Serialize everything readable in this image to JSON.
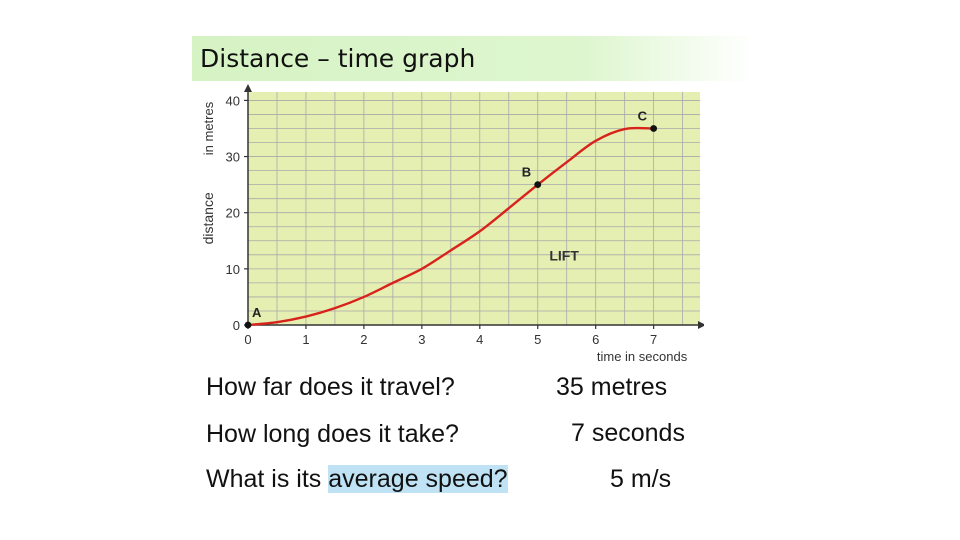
{
  "slide": {
    "title": "Distance – time  graph"
  },
  "chart_data": {
    "type": "line",
    "y_axis_label": "distance",
    "y_axis_unit_label": "in metres",
    "x_axis_label": "time in seconds",
    "x_ticks": [
      "0",
      "1",
      "2",
      "3",
      "4",
      "5",
      "6",
      "7"
    ],
    "y_ticks": [
      "0",
      "10",
      "20",
      "30",
      "40"
    ],
    "xlim": [
      0,
      7.8
    ],
    "ylim": [
      0,
      41.5
    ],
    "grid": true,
    "series": [
      {
        "x": [
          0,
          0.5,
          1,
          1.5,
          2,
          2.5,
          3,
          3.5,
          4,
          4.5,
          5,
          5.5,
          6,
          6.5,
          7
        ],
        "y": [
          0,
          0.5,
          1.5,
          3,
          5,
          7.5,
          10,
          13.3,
          16.7,
          20.8,
          25,
          29,
          32.8,
          34.9,
          35
        ],
        "color": "#d8231c"
      }
    ],
    "points": [
      {
        "label": "A",
        "x": 0,
        "y": 0
      },
      {
        "label": "B",
        "x": 5,
        "y": 25
      },
      {
        "label": "C",
        "x": 7,
        "y": 35
      }
    ],
    "annotations": [
      {
        "text": "LIFT",
        "x": 5.2,
        "y": 11.5
      }
    ],
    "colors": {
      "background": "#e6efb2",
      "grid": "#a9a9a9",
      "curve": "#d8231c",
      "axis": "#333333"
    }
  },
  "questions": [
    {
      "question_prefix": "How far does it travel?",
      "question_highlight": "",
      "question_suffix": "",
      "answer": "35 metres"
    },
    {
      "question_prefix": "How long does it take?",
      "question_highlight": "",
      "question_suffix": "",
      "answer": "7 seconds"
    },
    {
      "question_prefix": "What is its ",
      "question_highlight": "average speed?",
      "question_suffix": "",
      "answer": "5 m/s"
    }
  ]
}
